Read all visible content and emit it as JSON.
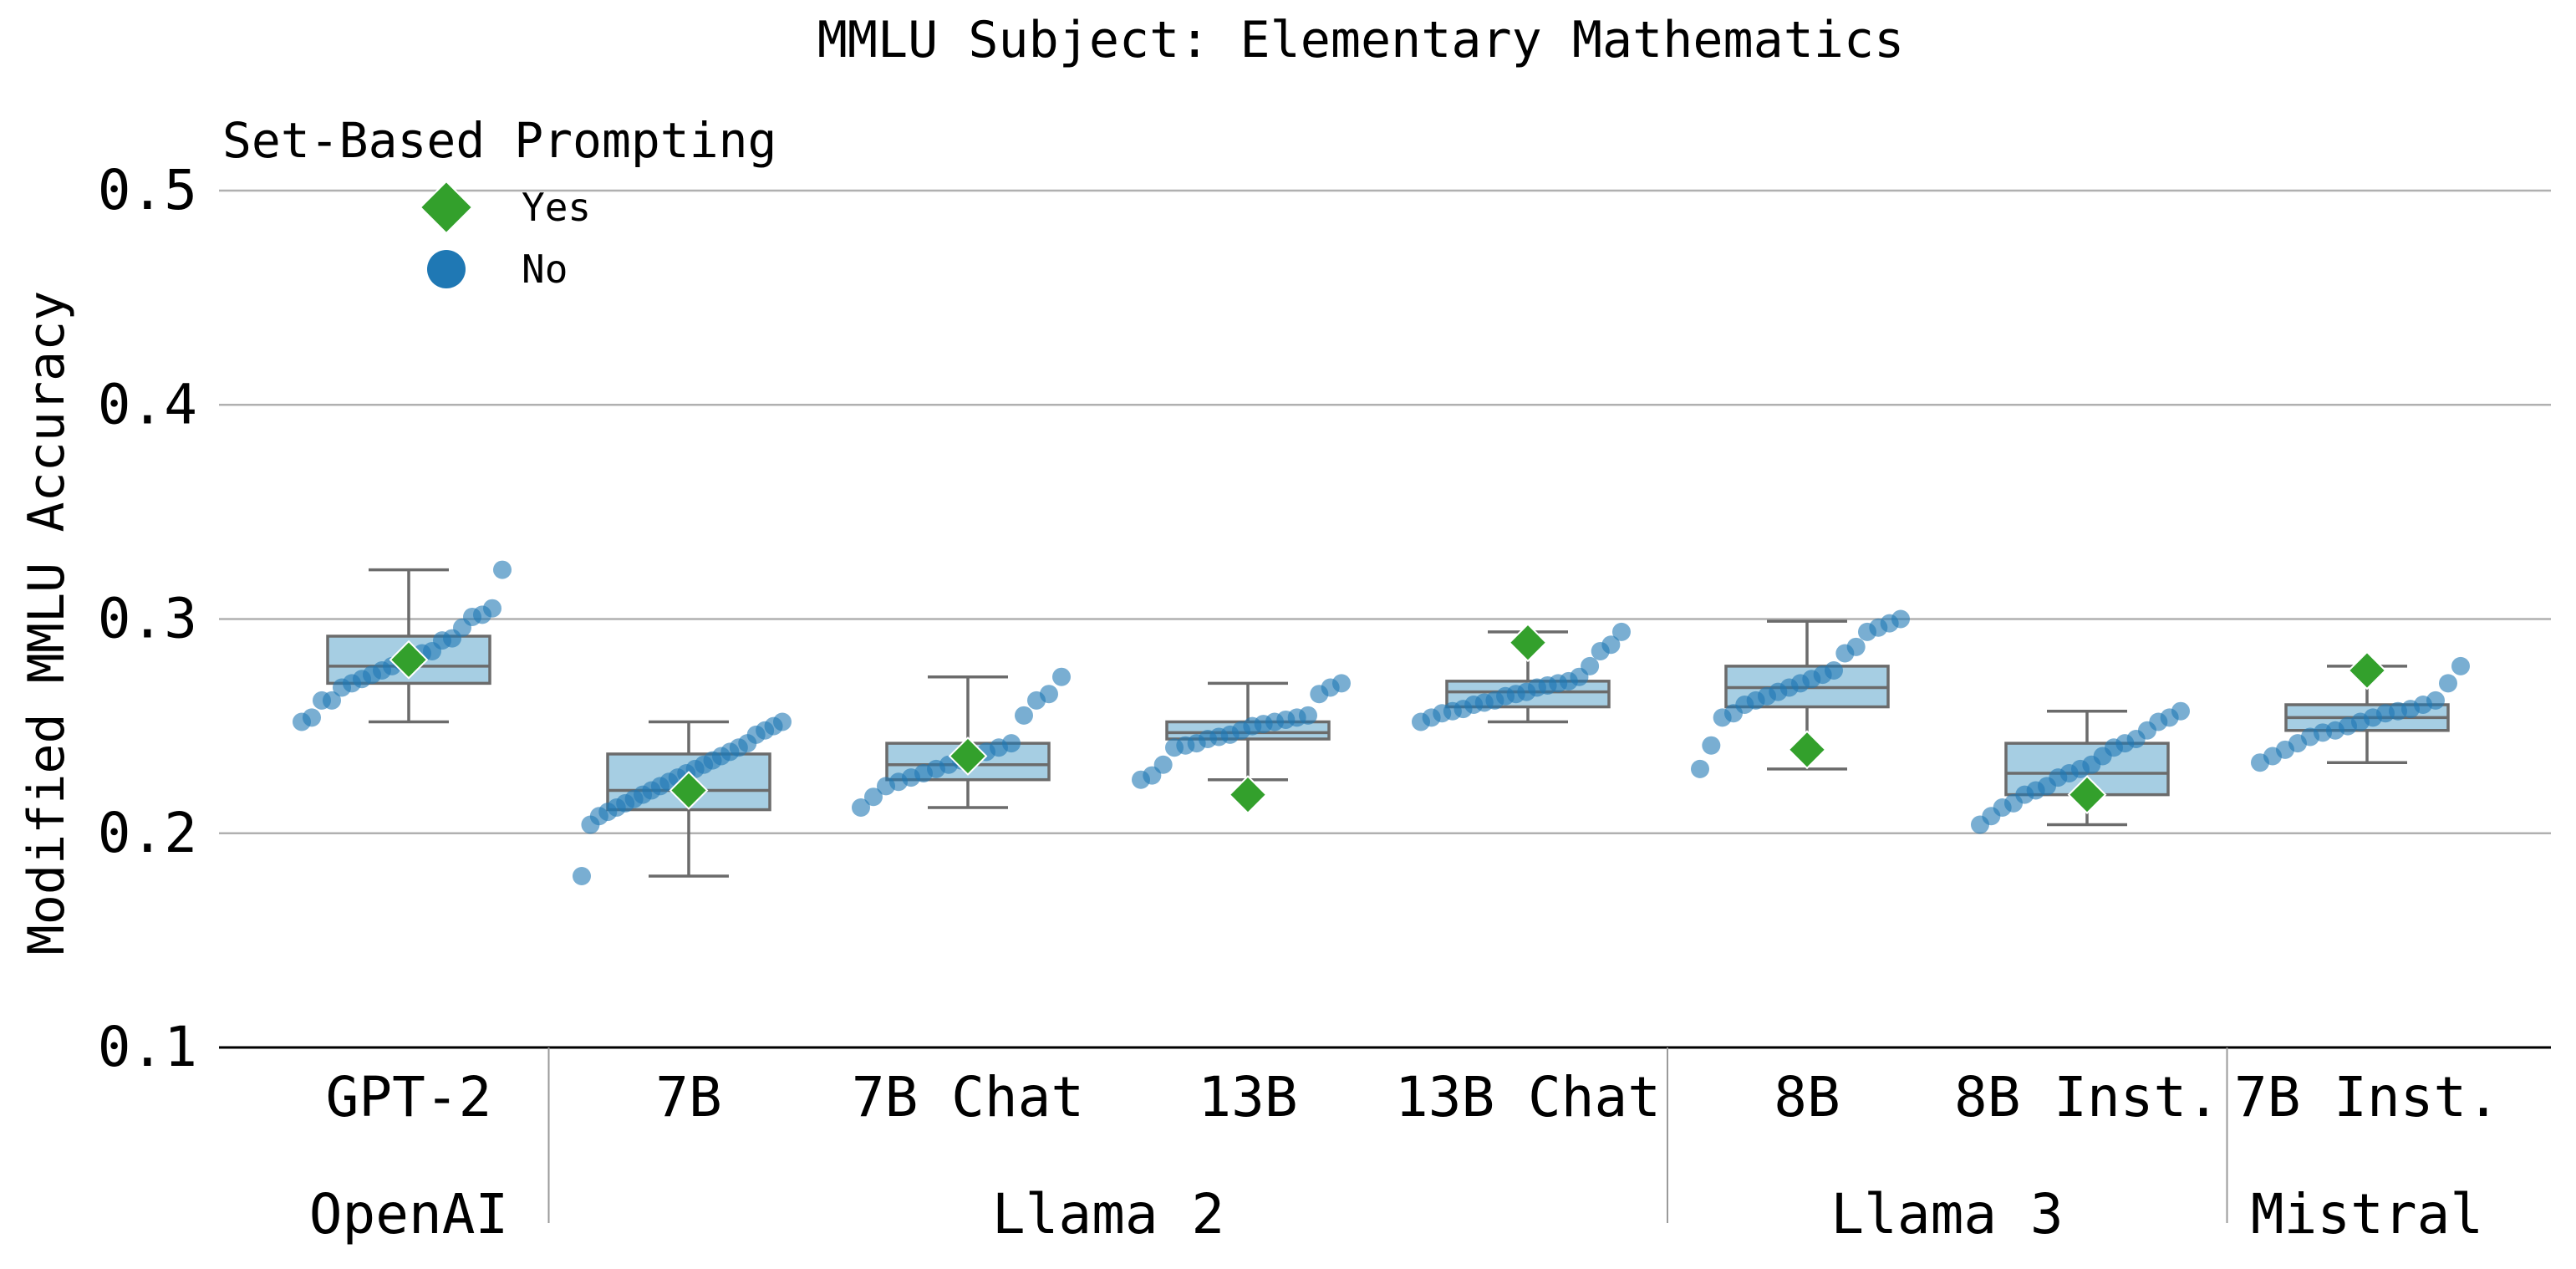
{
  "chart_data": {
    "type": "box",
    "title": "MMLU Subject: Elementary Mathematics",
    "ylabel": "Modified MMLU Accuracy",
    "ylim": [
      0.1,
      0.5
    ],
    "yticks": [
      0.1,
      0.2,
      0.3,
      0.4,
      0.5
    ],
    "grid": "horizontal",
    "categories": [
      "GPT-2",
      "7B",
      "7B Chat",
      "13B",
      "13B Chat",
      "8B",
      "8B Inst.",
      "7B Inst."
    ],
    "groups": [
      {
        "label": "OpenAI",
        "members": [
          "GPT-2"
        ]
      },
      {
        "label": "Llama 2",
        "members": [
          "7B",
          "7B Chat",
          "13B",
          "13B Chat"
        ]
      },
      {
        "label": "Llama 3",
        "members": [
          "8B",
          "8B Inst."
        ]
      },
      {
        "label": "Mistral",
        "members": [
          "7B Inst."
        ]
      }
    ],
    "legend": {
      "title": "Set-Based Prompting",
      "placement": "upper-left",
      "entries": [
        {
          "label": "Yes",
          "marker": "diamond",
          "color": "#33a02c"
        },
        {
          "label": "No",
          "marker": "circle",
          "color": "#1f78b4"
        }
      ]
    },
    "colors": {
      "box_fill": "#a6cee3",
      "box_edge": "#6b6b6b",
      "yes": "#33a02c",
      "no": "#1f78b4",
      "grid": "#b0b0b0"
    },
    "boxes": [
      {
        "q1": 0.27,
        "median": 0.278,
        "q3": 0.292,
        "whisker_low": 0.252,
        "whisker_high": 0.323
      },
      {
        "q1": 0.211,
        "median": 0.22,
        "q3": 0.237,
        "whisker_low": 0.18,
        "whisker_high": 0.252
      },
      {
        "q1": 0.225,
        "median": 0.232,
        "q3": 0.242,
        "whisker_low": 0.212,
        "whisker_high": 0.273
      },
      {
        "q1": 0.244,
        "median": 0.247,
        "q3": 0.252,
        "whisker_low": 0.225,
        "whisker_high": 0.27
      },
      {
        "q1": 0.259,
        "median": 0.266,
        "q3": 0.271,
        "whisker_low": 0.252,
        "whisker_high": 0.294
      },
      {
        "q1": 0.259,
        "median": 0.268,
        "q3": 0.278,
        "whisker_low": 0.23,
        "whisker_high": 0.299
      },
      {
        "q1": 0.218,
        "median": 0.228,
        "q3": 0.242,
        "whisker_low": 0.204,
        "whisker_high": 0.257
      },
      {
        "q1": 0.248,
        "median": 0.254,
        "q3": 0.26,
        "whisker_low": 0.233,
        "whisker_high": 0.278
      }
    ],
    "set_based_prompting_yes": [
      0.281,
      0.22,
      0.236,
      0.218,
      0.289,
      0.239,
      0.218,
      0.276
    ],
    "no_points": [
      [
        0.252,
        0.254,
        0.262,
        0.262,
        0.268,
        0.27,
        0.272,
        0.274,
        0.276,
        0.278,
        0.28,
        0.282,
        0.284,
        0.285,
        0.29,
        0.291,
        0.296,
        0.301,
        0.302,
        0.305,
        0.323
      ],
      [
        0.18,
        0.204,
        0.208,
        0.21,
        0.212,
        0.214,
        0.216,
        0.218,
        0.22,
        0.222,
        0.224,
        0.226,
        0.228,
        0.23,
        0.232,
        0.234,
        0.236,
        0.238,
        0.24,
        0.242,
        0.246,
        0.248,
        0.25,
        0.252
      ],
      [
        0.212,
        0.217,
        0.222,
        0.224,
        0.226,
        0.228,
        0.23,
        0.232,
        0.234,
        0.236,
        0.238,
        0.24,
        0.242,
        0.255,
        0.262,
        0.265,
        0.273
      ],
      [
        0.225,
        0.227,
        0.232,
        0.24,
        0.241,
        0.242,
        0.244,
        0.245,
        0.246,
        0.248,
        0.25,
        0.251,
        0.252,
        0.253,
        0.254,
        0.255,
        0.265,
        0.268,
        0.27
      ],
      [
        0.252,
        0.254,
        0.256,
        0.257,
        0.258,
        0.26,
        0.261,
        0.262,
        0.264,
        0.265,
        0.266,
        0.268,
        0.269,
        0.27,
        0.271,
        0.273,
        0.278,
        0.285,
        0.288,
        0.294
      ],
      [
        0.23,
        0.241,
        0.254,
        0.256,
        0.26,
        0.262,
        0.264,
        0.266,
        0.268,
        0.27,
        0.272,
        0.274,
        0.276,
        0.284,
        0.287,
        0.294,
        0.296,
        0.298,
        0.3
      ],
      [
        0.204,
        0.208,
        0.212,
        0.214,
        0.218,
        0.22,
        0.222,
        0.226,
        0.228,
        0.23,
        0.232,
        0.236,
        0.24,
        0.242,
        0.244,
        0.248,
        0.252,
        0.254,
        0.257
      ],
      [
        0.233,
        0.236,
        0.239,
        0.242,
        0.245,
        0.247,
        0.248,
        0.25,
        0.252,
        0.254,
        0.256,
        0.257,
        0.258,
        0.26,
        0.262,
        0.27,
        0.278
      ]
    ]
  }
}
